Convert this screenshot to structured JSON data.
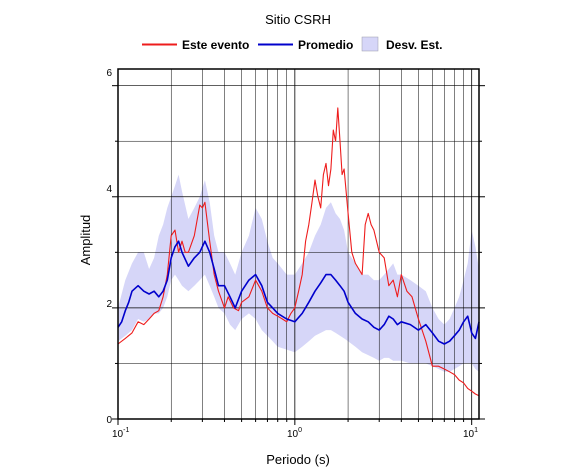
{
  "chart_data": {
    "type": "line",
    "title": "Sitio CSRH",
    "xlabel": "Periodo (s)",
    "ylabel": "Amplitud",
    "x_scale": "log",
    "xlim": [
      0.1,
      11
    ],
    "ylim": [
      0,
      6.3
    ],
    "x_tick_labels": [
      {
        "base": "10",
        "exp": "-1"
      },
      {
        "base": "10",
        "exp": "0"
      },
      {
        "base": "10",
        "exp": "1"
      }
    ],
    "y_ticks": [
      0,
      2,
      4,
      6
    ],
    "y_tick_labels": [
      "0",
      "2",
      "4",
      "6"
    ],
    "grid": true,
    "legend_position": "top",
    "legend": [
      {
        "label": "Este evento",
        "kind": "line",
        "color": "#ee1c1c"
      },
      {
        "label": "Promedio",
        "kind": "line",
        "color": "#0000cc"
      },
      {
        "label": "Desv. Est.",
        "kind": "band",
        "color": "#d6d6f8"
      }
    ],
    "series": [
      {
        "name": "Este evento",
        "color": "#ee1c1c",
        "x": [
          0.1,
          0.11,
          0.12,
          0.13,
          0.14,
          0.15,
          0.16,
          0.17,
          0.18,
          0.19,
          0.2,
          0.21,
          0.22,
          0.23,
          0.24,
          0.25,
          0.27,
          0.29,
          0.3,
          0.31,
          0.32,
          0.33,
          0.35,
          0.37,
          0.4,
          0.42,
          0.45,
          0.48,
          0.5,
          0.55,
          0.6,
          0.65,
          0.7,
          0.75,
          0.8,
          0.85,
          0.9,
          0.95,
          1.0,
          1.05,
          1.1,
          1.15,
          1.2,
          1.25,
          1.3,
          1.35,
          1.4,
          1.45,
          1.5,
          1.55,
          1.6,
          1.65,
          1.7,
          1.75,
          1.8,
          1.85,
          1.9,
          2.0,
          2.1,
          2.2,
          2.3,
          2.4,
          2.5,
          2.6,
          2.7,
          2.8,
          3.0,
          3.2,
          3.4,
          3.6,
          3.8,
          4.0,
          4.3,
          4.6,
          5.0,
          5.5,
          6.0,
          6.5,
          7.0,
          7.5,
          8.0,
          8.5,
          9.0,
          9.5,
          10.0,
          10.5,
          11.0
        ],
        "y": [
          1.35,
          1.45,
          1.55,
          1.75,
          1.7,
          1.8,
          1.9,
          1.95,
          2.2,
          2.6,
          3.3,
          3.4,
          3.0,
          3.2,
          3.0,
          3.0,
          3.3,
          3.85,
          3.8,
          3.9,
          3.55,
          3.2,
          2.6,
          2.3,
          2.0,
          2.2,
          2.0,
          1.95,
          2.1,
          2.2,
          2.5,
          2.3,
          2.0,
          1.9,
          1.85,
          1.8,
          1.75,
          1.9,
          2.0,
          2.3,
          2.6,
          3.2,
          3.5,
          3.9,
          4.3,
          4.0,
          3.8,
          4.4,
          4.6,
          4.2,
          4.5,
          5.2,
          5.0,
          5.6,
          5.0,
          4.4,
          4.5,
          3.7,
          3.0,
          2.8,
          2.7,
          2.6,
          3.5,
          3.7,
          3.5,
          3.4,
          3.0,
          2.9,
          2.4,
          2.5,
          2.2,
          2.6,
          2.3,
          2.2,
          1.8,
          1.4,
          0.95,
          0.95,
          0.9,
          0.85,
          0.8,
          0.7,
          0.65,
          0.55,
          0.5,
          0.45,
          0.42
        ]
      },
      {
        "name": "Promedio",
        "color": "#0000cc",
        "x": [
          0.1,
          0.105,
          0.11,
          0.115,
          0.12,
          0.13,
          0.14,
          0.15,
          0.16,
          0.17,
          0.18,
          0.19,
          0.2,
          0.21,
          0.22,
          0.23,
          0.25,
          0.27,
          0.29,
          0.31,
          0.33,
          0.35,
          0.37,
          0.4,
          0.43,
          0.46,
          0.5,
          0.55,
          0.6,
          0.65,
          0.7,
          0.75,
          0.8,
          0.9,
          1.0,
          1.1,
          1.2,
          1.3,
          1.4,
          1.5,
          1.6,
          1.7,
          1.8,
          1.9,
          2.0,
          2.2,
          2.4,
          2.6,
          2.8,
          3.0,
          3.2,
          3.4,
          3.6,
          3.8,
          4.0,
          4.5,
          5.0,
          5.5,
          6.0,
          6.5,
          7.0,
          7.5,
          8.0,
          8.5,
          9.0,
          9.5,
          10.0,
          10.5,
          11.0
        ],
        "y": [
          1.65,
          1.75,
          1.95,
          2.1,
          2.3,
          2.4,
          2.3,
          2.25,
          2.3,
          2.2,
          2.3,
          2.5,
          2.9,
          3.1,
          3.2,
          3.0,
          2.75,
          2.9,
          3.0,
          3.2,
          3.0,
          2.7,
          2.4,
          2.4,
          2.2,
          2.0,
          2.3,
          2.5,
          2.6,
          2.4,
          2.1,
          2.0,
          1.9,
          1.8,
          1.75,
          1.9,
          2.1,
          2.3,
          2.45,
          2.6,
          2.6,
          2.5,
          2.4,
          2.3,
          2.1,
          1.9,
          1.8,
          1.75,
          1.65,
          1.6,
          1.7,
          1.85,
          1.8,
          1.7,
          1.75,
          1.7,
          1.6,
          1.7,
          1.55,
          1.4,
          1.35,
          1.4,
          1.5,
          1.6,
          1.75,
          1.85,
          1.55,
          1.45,
          1.75
        ]
      }
    ],
    "band": {
      "name": "Desv. Est.",
      "color": "#d6d6f8",
      "x": [
        0.1,
        0.11,
        0.12,
        0.13,
        0.14,
        0.15,
        0.16,
        0.17,
        0.18,
        0.19,
        0.2,
        0.21,
        0.22,
        0.23,
        0.25,
        0.27,
        0.29,
        0.31,
        0.33,
        0.35,
        0.37,
        0.4,
        0.43,
        0.46,
        0.5,
        0.55,
        0.6,
        0.65,
        0.7,
        0.75,
        0.8,
        0.9,
        1.0,
        1.1,
        1.2,
        1.3,
        1.4,
        1.5,
        1.6,
        1.7,
        1.8,
        1.9,
        2.0,
        2.2,
        2.4,
        2.6,
        2.8,
        3.0,
        3.2,
        3.4,
        3.6,
        3.8,
        4.0,
        4.5,
        5.0,
        5.5,
        6.0,
        6.5,
        7.0,
        7.5,
        8.0,
        8.5,
        9.0,
        9.5,
        10.0,
        10.5,
        11.0
      ],
      "upper": [
        2.0,
        2.5,
        2.8,
        3.0,
        3.0,
        2.7,
        2.9,
        3.3,
        3.5,
        3.8,
        4.0,
        4.2,
        4.4,
        4.1,
        3.6,
        3.8,
        4.0,
        4.3,
        3.9,
        3.3,
        3.0,
        3.0,
        2.8,
        2.6,
        3.0,
        3.3,
        3.8,
        3.6,
        3.2,
        2.9,
        2.8,
        2.6,
        2.6,
        2.8,
        3.0,
        3.3,
        3.5,
        3.8,
        3.9,
        3.7,
        3.6,
        3.4,
        3.0,
        2.8,
        2.6,
        2.6,
        2.5,
        2.5,
        2.6,
        2.7,
        2.8,
        2.6,
        2.6,
        2.5,
        2.4,
        2.3,
        2.0,
        1.8,
        1.7,
        1.8,
        2.0,
        2.2,
        2.5,
        2.8,
        3.4,
        3.1,
        2.7
      ],
      "lower": [
        1.4,
        1.5,
        1.6,
        1.8,
        1.75,
        1.8,
        1.9,
        1.9,
        2.0,
        2.2,
        2.5,
        2.6,
        2.5,
        2.4,
        2.3,
        2.4,
        2.5,
        2.6,
        2.4,
        2.2,
        2.0,
        1.9,
        1.7,
        1.6,
        1.8,
        1.9,
        1.8,
        1.6,
        1.5,
        1.4,
        1.3,
        1.25,
        1.2,
        1.3,
        1.4,
        1.5,
        1.55,
        1.6,
        1.6,
        1.55,
        1.5,
        1.45,
        1.4,
        1.3,
        1.2,
        1.15,
        1.1,
        1.05,
        1.1,
        1.1,
        1.05,
        1.05,
        1.05,
        1.0,
        1.0,
        1.0,
        0.95,
        0.9,
        0.85,
        0.85,
        0.9,
        0.95,
        1.0,
        1.0,
        1.0,
        0.9,
        0.85
      ]
    }
  }
}
